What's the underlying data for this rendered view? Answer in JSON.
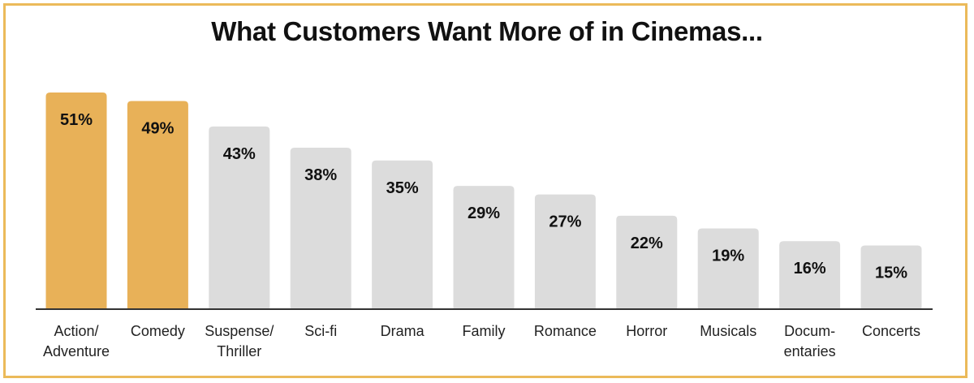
{
  "chart_data": {
    "type": "bar",
    "title": "What Customers Want More of in Cinemas...",
    "xlabel": "",
    "ylabel": "",
    "ylim": [
      0,
      51
    ],
    "grid": false,
    "categories": [
      [
        "Action/",
        "Adventure"
      ],
      [
        "Comedy"
      ],
      [
        "Suspense/",
        "Thriller"
      ],
      [
        "Sci-fi"
      ],
      [
        "Drama"
      ],
      [
        "Family"
      ],
      [
        "Romance"
      ],
      [
        "Horror"
      ],
      [
        "Musicals"
      ],
      [
        "Docum-",
        "entaries"
      ],
      [
        "Concerts"
      ]
    ],
    "values": [
      51,
      49,
      43,
      38,
      35,
      29,
      27,
      22,
      19,
      16,
      15
    ],
    "value_labels": [
      "51%",
      "49%",
      "43%",
      "38%",
      "35%",
      "29%",
      "27%",
      "22%",
      "19%",
      "16%",
      "15%"
    ],
    "highlight_indices": [
      0,
      1
    ],
    "colors": {
      "highlight": "#E8B158",
      "normal": "#DCDCDC",
      "axis": "#333333",
      "frame": "#EBBA5A"
    }
  }
}
